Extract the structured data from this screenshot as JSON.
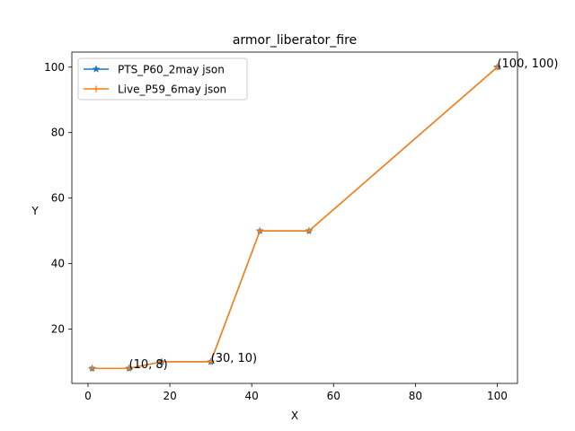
{
  "chart_data": {
    "type": "line",
    "title": "armor_liberator_fire",
    "xlabel": "X",
    "ylabel": "Y",
    "xlim": [
      -3.95,
      104.95
    ],
    "ylim": [
      3.4,
      104.6
    ],
    "x_ticks": [
      0,
      20,
      40,
      60,
      80,
      100
    ],
    "y_ticks": [
      20,
      40,
      60,
      80,
      100
    ],
    "grid": false,
    "legend_position": "upper-left",
    "series": [
      {
        "name": "PTS_P60_2may json",
        "color": "#1f77b4",
        "marker": "star",
        "x": [
          1,
          10,
          18,
          30,
          42,
          54,
          100
        ],
        "y": [
          8,
          8,
          10,
          10,
          50,
          50,
          100
        ]
      },
      {
        "name": "Live_P59_6may json",
        "color": "#ff7f0e",
        "marker": "plus",
        "x": [
          1,
          10,
          18,
          30,
          42,
          54,
          100
        ],
        "y": [
          8,
          8,
          10,
          10,
          50,
          50,
          100
        ]
      }
    ],
    "annotations": [
      {
        "text": "(10, 8)",
        "x": 10,
        "y": 8
      },
      {
        "text": "(30, 10)",
        "x": 30,
        "y": 10
      },
      {
        "text": "(100, 100)",
        "x": 100,
        "y": 100
      }
    ]
  }
}
